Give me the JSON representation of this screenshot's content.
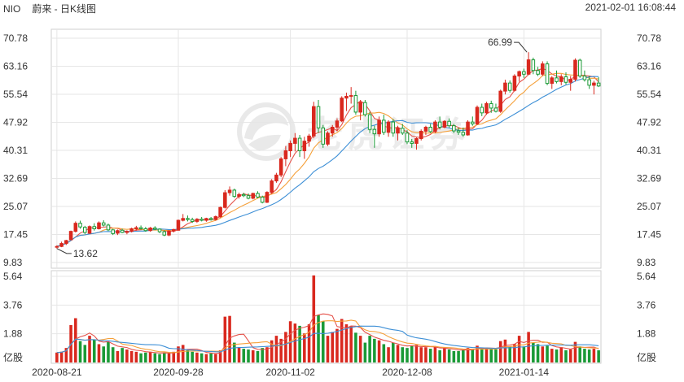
{
  "header": {
    "symbol": "NIO",
    "name": "蔚来 - 日K线图",
    "datetime": "2021-02-01 16:08:44"
  },
  "watermark": "老虎证券",
  "colors": {
    "up": "#d9281e",
    "down": "#1a9a36",
    "ma5": "#e5534b",
    "ma10": "#f5a03a",
    "ma20": "#3d8fd6",
    "grid": "#e6e6e6",
    "border": "#cfcfcf"
  },
  "chart_data": [
    {
      "type": "candlestick",
      "price_ticks": [
        "70.78",
        "63.16",
        "55.54",
        "47.92",
        "40.31",
        "32.69",
        "25.07",
        "17.45",
        "9.83"
      ],
      "ylim": [
        9.83,
        70.78
      ],
      "date_labels": [
        {
          "label": "2020-08-21",
          "index": 0
        },
        {
          "label": "2020-09-28",
          "index": 26
        },
        {
          "label": "2020-11-02",
          "index": 50
        },
        {
          "label": "2020-12-08",
          "index": 75
        },
        {
          "label": "2021-01-14",
          "index": 100
        }
      ],
      "annotations": {
        "high": {
          "label": "66.99",
          "index": 101,
          "value": 66.99
        },
        "low": {
          "label": "13.62",
          "index": 0,
          "value": 13.62
        }
      },
      "candles": [
        [
          14.0,
          14.5,
          13.62,
          14.2
        ],
        [
          14.2,
          15.5,
          14.0,
          15.0
        ],
        [
          15.0,
          16.0,
          14.6,
          15.8
        ],
        [
          16.0,
          18.5,
          15.9,
          18.3
        ],
        [
          18.3,
          21.0,
          18.0,
          20.5
        ],
        [
          20.5,
          21.2,
          19.0,
          19.5
        ],
        [
          19.4,
          19.8,
          17.5,
          18.0
        ],
        [
          17.8,
          19.9,
          17.6,
          19.6
        ],
        [
          19.6,
          20.5,
          18.5,
          19.0
        ],
        [
          19.0,
          21.0,
          18.8,
          20.6
        ],
        [
          20.6,
          21.3,
          19.6,
          20.0
        ],
        [
          20.0,
          20.4,
          18.4,
          18.7
        ],
        [
          18.7,
          19.0,
          17.3,
          17.7
        ],
        [
          17.8,
          18.8,
          17.3,
          18.5
        ],
        [
          18.6,
          19.0,
          17.8,
          18.0
        ],
        [
          18.0,
          18.6,
          17.5,
          18.3
        ],
        [
          18.3,
          19.3,
          18.0,
          19.0
        ],
        [
          19.0,
          19.8,
          18.5,
          19.3
        ],
        [
          19.3,
          19.9,
          18.8,
          19.0
        ],
        [
          19.0,
          19.5,
          18.2,
          18.5
        ],
        [
          18.5,
          19.5,
          18.2,
          19.2
        ],
        [
          19.2,
          19.7,
          18.6,
          18.9
        ],
        [
          18.9,
          19.1,
          17.8,
          18.2
        ],
        [
          18.2,
          18.6,
          17.0,
          17.3
        ],
        [
          17.3,
          18.6,
          17.0,
          18.4
        ],
        [
          18.4,
          19.0,
          18.0,
          18.8
        ],
        [
          18.6,
          21.5,
          18.5,
          21.3
        ],
        [
          21.3,
          23.0,
          21.0,
          21.8
        ],
        [
          21.8,
          22.6,
          21.0,
          21.5
        ],
        [
          21.5,
          22.0,
          20.6,
          21.0
        ],
        [
          21.0,
          21.9,
          20.6,
          21.6
        ],
        [
          21.6,
          22.2,
          21.0,
          21.3
        ],
        [
          21.3,
          22.0,
          20.9,
          21.8
        ],
        [
          21.8,
          22.2,
          21.2,
          21.5
        ],
        [
          21.5,
          22.6,
          21.2,
          22.3
        ],
        [
          22.3,
          25.0,
          22.0,
          24.8
        ],
        [
          24.8,
          29.5,
          24.5,
          28.8
        ],
        [
          28.8,
          30.5,
          28.0,
          29.5
        ],
        [
          29.5,
          29.9,
          27.4,
          27.8
        ],
        [
          27.8,
          28.8,
          27.2,
          28.3
        ],
        [
          28.3,
          28.8,
          27.6,
          28.0
        ],
        [
          28.0,
          28.6,
          27.0,
          27.3
        ],
        [
          27.3,
          28.8,
          27.0,
          28.6
        ],
        [
          28.6,
          29.2,
          27.3,
          27.6
        ],
        [
          27.6,
          28.0,
          25.9,
          26.2
        ],
        [
          26.2,
          29.2,
          26.0,
          28.9
        ],
        [
          28.9,
          32.5,
          28.5,
          32.0
        ],
        [
          32.0,
          34.2,
          31.5,
          33.6
        ],
        [
          33.6,
          38.5,
          33.0,
          38.0
        ],
        [
          38.0,
          41.5,
          36.0,
          40.2
        ],
        [
          40.2,
          43.0,
          38.5,
          42.2
        ],
        [
          42.2,
          45.0,
          40.0,
          43.6
        ],
        [
          43.6,
          44.5,
          38.5,
          40.2
        ],
        [
          40.2,
          44.0,
          38.0,
          42.8
        ],
        [
          42.8,
          44.8,
          41.3,
          44.2
        ],
        [
          44.2,
          53.5,
          43.6,
          52.2
        ],
        [
          52.2,
          54.0,
          45.0,
          46.4
        ],
        [
          46.4,
          47.2,
          41.0,
          42.0
        ],
        [
          42.0,
          45.5,
          41.5,
          45.0
        ],
        [
          45.0,
          47.2,
          44.0,
          46.6
        ],
        [
          46.6,
          49.0,
          45.5,
          48.3
        ],
        [
          48.3,
          55.0,
          48.0,
          54.5
        ],
        [
          54.5,
          56.0,
          51.0,
          55.0
        ],
        [
          55.0,
          57.5,
          53.0,
          55.2
        ],
        [
          55.2,
          56.5,
          50.0,
          50.7
        ],
        [
          50.7,
          54.0,
          48.5,
          53.3
        ],
        [
          53.3,
          54.0,
          49.5,
          50.0
        ],
        [
          50.0,
          50.8,
          45.0,
          46.0
        ],
        [
          46.0,
          47.0,
          41.0,
          44.8
        ],
        [
          44.8,
          49.5,
          44.0,
          48.5
        ],
        [
          48.5,
          50.0,
          44.5,
          45.2
        ],
        [
          45.2,
          48.5,
          44.0,
          48.0
        ],
        [
          48.0,
          48.8,
          44.0,
          45.0
        ],
        [
          45.0,
          47.0,
          43.0,
          46.3
        ],
        [
          46.3,
          47.5,
          44.5,
          45.0
        ],
        [
          45.0,
          45.8,
          42.0,
          42.6
        ],
        [
          42.6,
          43.4,
          41.0,
          42.2
        ],
        [
          42.2,
          43.8,
          40.5,
          43.5
        ],
        [
          43.5,
          46.0,
          43.0,
          45.5
        ],
        [
          45.5,
          47.0,
          44.5,
          46.6
        ],
        [
          46.6,
          47.5,
          45.0,
          45.4
        ],
        [
          45.4,
          48.5,
          45.0,
          48.0
        ],
        [
          48.0,
          49.5,
          46.0,
          46.6
        ],
        [
          46.6,
          48.5,
          46.3,
          48.2
        ],
        [
          48.2,
          49.0,
          46.5,
          47.0
        ],
        [
          47.0,
          47.5,
          45.0,
          45.6
        ],
        [
          45.6,
          46.5,
          44.5,
          45.2
        ],
        [
          45.2,
          46.5,
          44.0,
          44.5
        ],
        [
          44.5,
          48.5,
          44.3,
          48.0
        ],
        [
          48.0,
          49.5,
          47.0,
          47.5
        ],
        [
          47.5,
          52.5,
          47.2,
          52.0
        ],
        [
          52.0,
          53.0,
          49.6,
          50.5
        ],
        [
          50.5,
          53.5,
          50.0,
          53.0
        ],
        [
          53.0,
          53.8,
          50.5,
          51.8
        ],
        [
          51.8,
          53.0,
          50.6,
          50.9
        ],
        [
          50.9,
          56.8,
          50.5,
          56.4
        ],
        [
          56.4,
          59.5,
          55.5,
          58.6
        ],
        [
          58.6,
          59.3,
          56.0,
          56.6
        ],
        [
          56.6,
          61.0,
          56.3,
          60.5
        ],
        [
          60.5,
          62.0,
          59.0,
          61.7
        ],
        [
          61.7,
          62.5,
          60.0,
          61.0
        ],
        [
          61.0,
          66.99,
          60.8,
          64.9
        ],
        [
          64.9,
          65.5,
          61.0,
          62.0
        ],
        [
          62.0,
          63.0,
          60.5,
          61.0
        ],
        [
          61.0,
          64.5,
          60.5,
          63.8
        ],
        [
          63.8,
          64.5,
          58.0,
          58.5
        ],
        [
          58.5,
          60.5,
          57.0,
          60.0
        ],
        [
          60.0,
          62.0,
          58.5,
          59.0
        ],
        [
          59.0,
          61.0,
          58.0,
          60.3
        ],
        [
          60.3,
          61.5,
          58.2,
          58.8
        ],
        [
          58.8,
          60.5,
          56.5,
          59.6
        ],
        [
          59.6,
          65.3,
          59.0,
          64.8
        ],
        [
          64.8,
          65.2,
          60.0,
          60.5
        ],
        [
          60.5,
          62.0,
          59.0,
          59.5
        ],
        [
          59.5,
          60.5,
          57.0,
          58.0
        ],
        [
          58.0,
          59.2,
          55.5,
          58.6
        ],
        [
          58.6,
          60.2,
          57.5,
          57.8
        ]
      ],
      "volume_ticks": [
        "5.64",
        "3.76",
        "1.88"
      ],
      "volume_unit": "亿股",
      "volume_ylim": [
        0,
        5.64
      ],
      "volumes": [
        0.65,
        0.7,
        0.95,
        2.45,
        2.9,
        1.4,
        1.15,
        1.75,
        1.5,
        1.2,
        1.05,
        1.35,
        1.0,
        0.75,
        0.95,
        0.85,
        0.75,
        0.7,
        0.6,
        0.65,
        0.7,
        0.6,
        0.55,
        0.65,
        0.6,
        0.7,
        1.05,
        1.15,
        0.8,
        0.7,
        0.65,
        0.6,
        0.55,
        0.6,
        0.55,
        0.8,
        3.0,
        3.05,
        1.3,
        1.0,
        0.9,
        0.85,
        0.8,
        0.75,
        0.95,
        1.0,
        1.45,
        1.75,
        1.55,
        2.0,
        2.7,
        2.55,
        2.4,
        1.9,
        2.5,
        5.7,
        3.1,
        2.7,
        1.75,
        2.0,
        2.2,
        2.85,
        2.5,
        2.4,
        1.95,
        1.75,
        1.3,
        1.75,
        1.55,
        1.45,
        1.2,
        1.0,
        1.3,
        1.15,
        1.0,
        0.95,
        1.1,
        1.15,
        1.0,
        1.0,
        0.9,
        1.05,
        0.8,
        0.95,
        0.85,
        0.75,
        0.75,
        0.8,
        0.95,
        0.9,
        1.1,
        0.85,
        0.95,
        0.9,
        0.85,
        1.4,
        1.5,
        1.05,
        1.2,
        1.75,
        1.05,
        2.0,
        1.3,
        1.2,
        1.05,
        1.1,
        0.9,
        0.85,
        1.0,
        0.8,
        0.85,
        1.35,
        1.05,
        0.9,
        0.85,
        0.9,
        0.8
      ]
    }
  ]
}
